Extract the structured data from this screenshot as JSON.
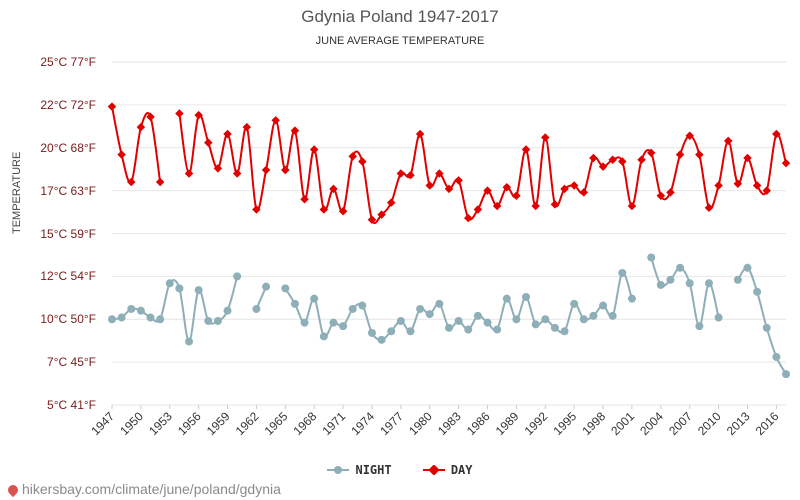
{
  "chart_data": {
    "type": "line",
    "title": "Gdynia Poland 1947-2017",
    "subtitle": "JUNE AVERAGE TEMPERATURE",
    "ylabel": "TEMPERATURE",
    "ylim": [
      5,
      25
    ],
    "xlim": [
      1947,
      2017
    ],
    "yticks": [
      {
        "value": 25,
        "label": "25°C 77°F"
      },
      {
        "value": 22.5,
        "label": "22°C 72°F"
      },
      {
        "value": 20,
        "label": "20°C 68°F"
      },
      {
        "value": 17.5,
        "label": "17°C 63°F"
      },
      {
        "value": 15,
        "label": "15°C 59°F"
      },
      {
        "value": 12.5,
        "label": "12°C 54°F"
      },
      {
        "value": 10,
        "label": "10°C 50°F"
      },
      {
        "value": 7.5,
        "label": "7°C 45°F"
      },
      {
        "value": 5,
        "label": "5°C 41°F"
      }
    ],
    "xticks": [
      "1947",
      "1950",
      "1953",
      "1956",
      "1959",
      "1962",
      "1965",
      "1968",
      "1971",
      "1974",
      "1977",
      "1980",
      "1983",
      "1986",
      "1989",
      "1992",
      "1995",
      "1998",
      "2001",
      "2004",
      "2007",
      "2010",
      "2013",
      "2016"
    ],
    "legend": [
      "NIGHT",
      "DAY"
    ],
    "series": [
      {
        "name": "DAY",
        "color": "#e00000",
        "values": [
          22.4,
          19.6,
          18.0,
          21.2,
          21.8,
          18.0,
          null,
          22.0,
          18.5,
          21.9,
          20.3,
          18.8,
          20.8,
          18.5,
          21.2,
          16.4,
          18.7,
          21.6,
          18.7,
          21.0,
          17.0,
          19.9,
          16.4,
          17.6,
          16.3,
          19.5,
          19.2,
          15.8,
          16.1,
          16.8,
          18.5,
          18.4,
          20.8,
          17.8,
          18.5,
          17.6,
          18.1,
          15.9,
          16.4,
          17.5,
          16.6,
          17.7,
          17.2,
          19.9,
          16.6,
          20.6,
          16.7,
          17.6,
          17.8,
          17.4,
          19.4,
          18.9,
          19.3,
          19.2,
          16.6,
          19.3,
          19.7,
          17.2,
          17.4,
          19.6,
          20.7,
          19.6,
          16.5,
          17.8,
          20.4,
          17.9,
          19.4,
          17.8,
          17.5,
          20.8,
          19.1
        ]
      },
      {
        "name": "NIGHT",
        "color": "#8eaeb8",
        "values": [
          10.0,
          10.1,
          10.6,
          10.5,
          10.1,
          10.0,
          12.1,
          11.8,
          8.7,
          11.7,
          9.9,
          9.9,
          10.5,
          12.5,
          null,
          10.6,
          11.9,
          null,
          11.8,
          10.9,
          9.8,
          11.2,
          9.0,
          9.8,
          9.6,
          10.6,
          10.8,
          9.2,
          8.8,
          9.3,
          9.9,
          9.3,
          10.6,
          10.3,
          10.9,
          9.5,
          9.9,
          9.4,
          10.2,
          9.8,
          9.4,
          11.2,
          10.0,
          11.3,
          9.7,
          10.0,
          9.5,
          9.3,
          10.9,
          10.0,
          10.2,
          10.8,
          10.2,
          12.7,
          11.2,
          null,
          13.6,
          12.0,
          12.3,
          13.0,
          12.1,
          9.6,
          12.1,
          10.1,
          null,
          12.3,
          13.0,
          11.6,
          9.5,
          7.8,
          6.8
        ]
      }
    ]
  },
  "footer": {
    "text": "hikersbay.com/climate/june/poland/gdynia",
    "icon": "map-pin-icon"
  }
}
